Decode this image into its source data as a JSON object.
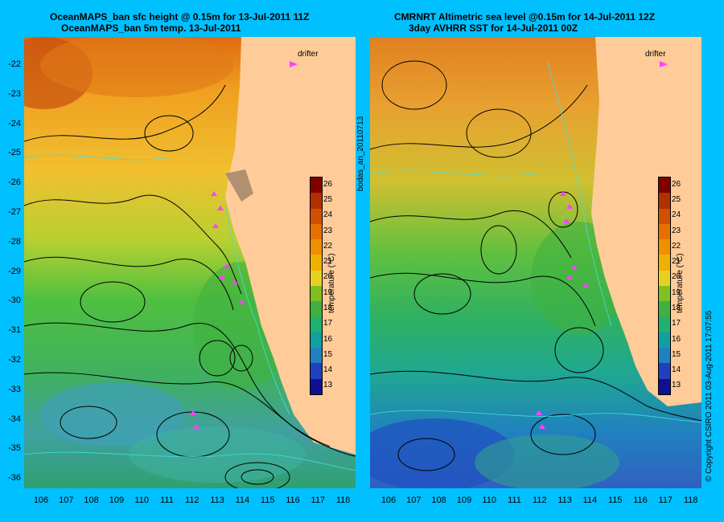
{
  "left_panel": {
    "title_line1": "OceanMAPS_ban sfc height @ 0.15m for 13-Jul-2011 11Z",
    "title_line2": "OceanMAPS_ban 5m temp. 13-Jul-2011",
    "drifter_label": "drifter"
  },
  "right_panel": {
    "title_line1": "CMRNRT Altimetric sea level  @0.15m  for 14-Jul-2011 12Z",
    "title_line2": "3day AVHRR SST for 14-Jul-2011 00Z",
    "drifter_label": "drifter"
  },
  "side_labels": {
    "left": "bodas_an_20110713",
    "right_footer": "© Copyright CSIRO 2011   03-Aug-2011 17:07:55"
  },
  "colorbar": {
    "label": "temperature (°C)",
    "ticks": [
      "26",
      "25",
      "24",
      "23",
      "22",
      "21",
      "20",
      "19",
      "18",
      "17",
      "16",
      "15",
      "14",
      "13"
    ],
    "colors": [
      "#800000",
      "#b03000",
      "#d05000",
      "#e87000",
      "#f09000",
      "#f0b000",
      "#e8d020",
      "#80c020",
      "#40b040",
      "#20b070",
      "#10a0a0",
      "#2080c0",
      "#2040c0",
      "#101090"
    ]
  },
  "axes": {
    "lat_labels": [
      "-22",
      "-23",
      "-24",
      "-25",
      "-26",
      "-27",
      "-28",
      "-29",
      "-30",
      "-31",
      "-32",
      "-33",
      "-34",
      "-35",
      "-36"
    ],
    "lon_labels": [
      "106",
      "107",
      "108",
      "109",
      "110",
      "111",
      "112",
      "113",
      "114",
      "115",
      "116",
      "117",
      "118"
    ]
  },
  "colors": {
    "background": "#00c0ff",
    "land": "#ffcc99",
    "contour": "#000000",
    "drifter": "#ff40ff"
  }
}
